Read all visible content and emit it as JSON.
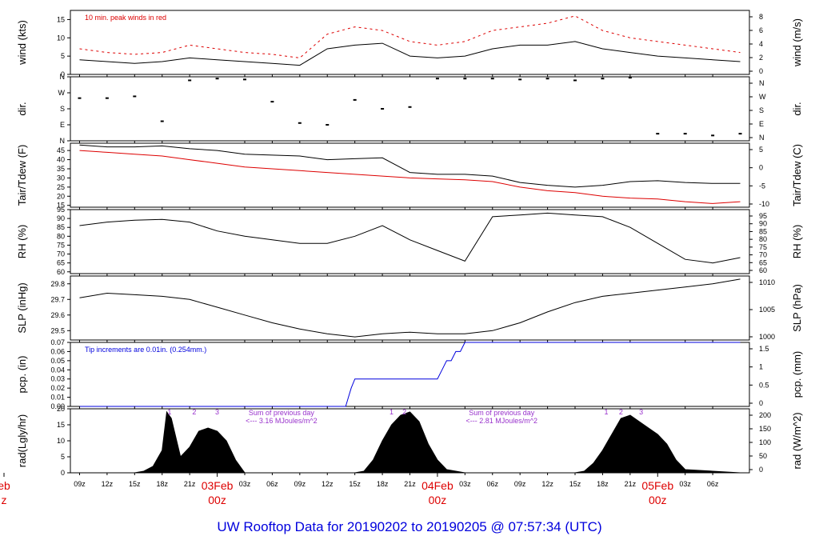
{
  "footer_title": "UW Rooftop Data for 20190202  to  20190205 @ 07:57:34  (UTC)",
  "colors": {
    "black": "#000000",
    "red": "#dd0000",
    "blue": "#0000dd",
    "purple": "#9933cc"
  },
  "chart_data": [
    {
      "type": "line",
      "panel": "wind",
      "ylabel_left": "wind (kts)",
      "ylabel_right": "wind (m/s)",
      "yticks_left": [
        "0",
        "5",
        "10",
        "15"
      ],
      "yticks_right": [
        "0",
        "2",
        "4",
        "6",
        "8"
      ],
      "ylim": [
        0,
        17.5
      ],
      "annotation": "10 min. peak winds in red",
      "series": [
        {
          "color": "#000000",
          "x": [
            9,
            12,
            15,
            18,
            21,
            24,
            27,
            30,
            33,
            36,
            39,
            42,
            45,
            48,
            51,
            54,
            57,
            60,
            63,
            66,
            69,
            72,
            75,
            78,
            81
          ],
          "y": [
            4,
            3.5,
            3,
            3.5,
            4.5,
            4,
            3.5,
            3,
            2.5,
            7,
            8,
            8.5,
            5,
            4.5,
            5,
            7,
            8,
            8,
            9,
            7,
            6,
            5,
            4.5,
            4,
            3.5
          ]
        },
        {
          "color": "#dd0000",
          "x": [
            9,
            12,
            15,
            18,
            21,
            24,
            27,
            30,
            33,
            36,
            39,
            42,
            45,
            48,
            51,
            54,
            57,
            60,
            63,
            66,
            69,
            72,
            75,
            78,
            81
          ],
          "y": [
            7,
            6,
            5.5,
            6,
            8,
            7,
            6,
            5.5,
            4.5,
            11,
            13,
            12,
            9,
            8,
            9,
            12,
            13,
            14,
            16,
            12,
            10,
            9,
            8,
            7,
            6
          ]
        }
      ]
    },
    {
      "type": "scatter",
      "panel": "dir",
      "ylabel_left": "dir.",
      "ylabel_right": "dir.",
      "yticks_left": [
        "N",
        "E",
        "S",
        "W",
        "N"
      ],
      "yticks_right": [
        "N",
        "E",
        "S",
        "W",
        "N"
      ],
      "ylim": [
        0,
        360
      ],
      "x": [
        9,
        12,
        15,
        18,
        21,
        24,
        27,
        30,
        33,
        36,
        39,
        42,
        45,
        48,
        51,
        54,
        57,
        60,
        63,
        66,
        69,
        72,
        75,
        78,
        81
      ],
      "y": [
        240,
        240,
        250,
        110,
        340,
        350,
        345,
        220,
        100,
        90,
        230,
        180,
        190,
        350,
        350,
        350,
        345,
        350,
        340,
        350,
        355,
        40,
        40,
        30,
        40
      ]
    },
    {
      "type": "line",
      "panel": "temp",
      "ylabel_left": "Tair/Tdew (F)",
      "ylabel_right": "Tair/Tdew (C)",
      "yticks_left": [
        "15",
        "20",
        "25",
        "30",
        "35",
        "40",
        "45"
      ],
      "yticks_right": [
        "-10",
        "-5",
        "0",
        "5"
      ],
      "ylim": [
        14,
        49
      ],
      "series": [
        {
          "color": "#000000",
          "x": [
            9,
            12,
            15,
            18,
            21,
            24,
            27,
            30,
            33,
            36,
            39,
            42,
            45,
            48,
            51,
            54,
            57,
            60,
            63,
            66,
            69,
            72,
            75,
            78,
            81
          ],
          "y": [
            48,
            47,
            47,
            47.5,
            46,
            45,
            43,
            42.5,
            42,
            40,
            40.5,
            41,
            33,
            32,
            32,
            31,
            27.5,
            26,
            25,
            26,
            28,
            28.5,
            27.5,
            27,
            27
          ]
        },
        {
          "color": "#dd0000",
          "x": [
            9,
            12,
            15,
            18,
            21,
            24,
            27,
            30,
            33,
            36,
            39,
            42,
            45,
            48,
            51,
            54,
            57,
            60,
            63,
            66,
            69,
            72,
            75,
            78,
            81
          ],
          "y": [
            45,
            44,
            43,
            42,
            40,
            38,
            36,
            35,
            34,
            33,
            32,
            31,
            30,
            29.5,
            29,
            28,
            25,
            23,
            22,
            20,
            19,
            18.5,
            17,
            16,
            17
          ]
        }
      ]
    },
    {
      "type": "line",
      "panel": "rh",
      "ylabel_left": "RH (%)",
      "ylabel_right": "RH (%)",
      "yticks_left": [
        "60",
        "65",
        "70",
        "75",
        "80",
        "85",
        "90",
        "95"
      ],
      "yticks_right": [
        "60",
        "65",
        "70",
        "75",
        "80",
        "85",
        "90",
        "95"
      ],
      "ylim": [
        59,
        95
      ],
      "series": [
        {
          "color": "#000000",
          "x": [
            9,
            12,
            15,
            18,
            21,
            24,
            27,
            30,
            33,
            36,
            39,
            42,
            45,
            48,
            51,
            54,
            57,
            60,
            63,
            66,
            69,
            72,
            75,
            78,
            81
          ],
          "y": [
            86,
            88,
            89,
            89.5,
            88,
            83,
            80,
            78,
            76,
            76,
            80,
            86,
            78,
            72,
            66,
            91,
            92,
            93,
            92,
            91,
            85,
            76,
            67,
            65,
            68
          ]
        }
      ]
    },
    {
      "type": "line",
      "panel": "slp",
      "ylabel_left": "SLP (inHg)",
      "ylabel_right": "SLP (hPa)",
      "yticks_left": [
        "29.5",
        "29.6",
        "29.7",
        "29.8"
      ],
      "yticks_right": [
        "1000",
        "1005",
        "1010"
      ],
      "ylim": [
        29.44,
        29.85
      ],
      "series": [
        {
          "color": "#000000",
          "x": [
            9,
            12,
            15,
            18,
            21,
            24,
            27,
            30,
            33,
            36,
            39,
            42,
            45,
            48,
            51,
            54,
            57,
            60,
            63,
            66,
            69,
            72,
            75,
            78,
            81
          ],
          "y": [
            29.71,
            29.74,
            29.73,
            29.72,
            29.7,
            29.65,
            29.6,
            29.55,
            29.51,
            29.48,
            29.46,
            29.48,
            29.49,
            29.48,
            29.48,
            29.5,
            29.55,
            29.62,
            29.68,
            29.72,
            29.74,
            29.76,
            29.78,
            29.8,
            29.83
          ]
        }
      ]
    },
    {
      "type": "line",
      "panel": "pcp",
      "ylabel_left": "pcp. (in)",
      "ylabel_right": "pcp. (mm)",
      "yticks_left": [
        "0.00",
        "0.01",
        "0.02",
        "0.03",
        "0.04",
        "0.05",
        "0.06",
        "0.07"
      ],
      "yticks_right": [
        "0",
        "0.5",
        "1",
        "1.5"
      ],
      "ylim": [
        0,
        0.07
      ],
      "annotation": "Tip increments are 0.01in. (0.254mm.)",
      "series": [
        {
          "color": "#0000dd",
          "x": [
            9,
            38,
            38.3,
            38.6,
            39,
            48,
            48.5,
            49,
            49.5,
            50,
            50.5,
            51,
            51.5,
            81
          ],
          "y": [
            0,
            0,
            0.01,
            0.02,
            0.03,
            0.03,
            0.04,
            0.05,
            0.05,
            0.06,
            0.06,
            0.07,
            0.07,
            0.07
          ]
        }
      ]
    },
    {
      "type": "area",
      "panel": "rad",
      "ylabel_left": "rad(Lgly/hr)",
      "ylabel_right": "rad (W/m^2)",
      "yticks_left": [
        "0",
        "5",
        "10",
        "15",
        "20"
      ],
      "yticks_right": [
        "0",
        "50",
        "100",
        "150",
        "200"
      ],
      "ylim": [
        0,
        20
      ],
      "top_marks": [
        {
          "text": "1",
          "x": 18.8
        },
        {
          "text": "2",
          "x": 21.5
        },
        {
          "text": "3",
          "x": 24.0
        },
        {
          "text": "1",
          "x": 43.0
        },
        {
          "text": "2",
          "x": 44.4
        },
        {
          "text": "1",
          "x": 66.4
        },
        {
          "text": "2",
          "x": 68.0
        },
        {
          "text": "3",
          "x": 70.2
        }
      ],
      "notes": [
        {
          "line1": "Sum of previous day",
          "line2": "<--- 3.16 MJoules/m^2",
          "x": 31
        },
        {
          "line1": "Sum of previous day",
          "line2": "<--- 2.81 MJoules/m^2",
          "x": 55
        }
      ],
      "series": [
        {
          "color": "#000000",
          "x": [
            9,
            15,
            16,
            17,
            18,
            18.5,
            19,
            20,
            21,
            22,
            23,
            24,
            25,
            26,
            27,
            39,
            40,
            41,
            42,
            43,
            44,
            45,
            46,
            47,
            48,
            49,
            50,
            51,
            63,
            64,
            65,
            66,
            67,
            68,
            69,
            70,
            71,
            72,
            73,
            74,
            75,
            81
          ],
          "y": [
            0,
            0,
            0.5,
            2,
            7,
            19,
            17,
            5,
            8,
            13,
            14,
            13,
            10,
            4,
            0,
            0,
            0.5,
            4,
            10,
            15,
            18,
            19,
            16,
            9,
            4,
            1,
            0.5,
            0,
            0,
            0.5,
            3,
            7,
            12,
            17,
            18,
            16,
            14,
            12,
            9,
            4,
            1,
            0
          ]
        }
      ]
    }
  ],
  "x_axis": {
    "xlim": [
      8,
      82
    ],
    "ticks": [
      {
        "label": "09z",
        "x": 9
      },
      {
        "label": "12z",
        "x": 12
      },
      {
        "label": "15z",
        "x": 15
      },
      {
        "label": "18z",
        "x": 18
      },
      {
        "label": "21z",
        "x": 21
      },
      {
        "label": "03z",
        "x": 27
      },
      {
        "label": "06z",
        "x": 30
      },
      {
        "label": "09z",
        "x": 33
      },
      {
        "label": "12z",
        "x": 36
      },
      {
        "label": "15z",
        "x": 39
      },
      {
        "label": "18z",
        "x": 42
      },
      {
        "label": "21z",
        "x": 45
      },
      {
        "label": "03z",
        "x": 51
      },
      {
        "label": "06z",
        "x": 54
      },
      {
        "label": "09z",
        "x": 57
      },
      {
        "label": "12z",
        "x": 60
      },
      {
        "label": "15z",
        "x": 63
      },
      {
        "label": "18z",
        "x": 66
      },
      {
        "label": "21z",
        "x": 69
      },
      {
        "label": "03z",
        "x": 75
      },
      {
        "label": "06z",
        "x": 78
      }
    ],
    "day_labels": [
      {
        "date": "eb",
        "time": "z",
        "x": 0
      },
      {
        "date": "03Feb",
        "time": "00z",
        "x": 24
      },
      {
        "date": "04Feb",
        "time": "00z",
        "x": 48
      },
      {
        "date": "05Feb",
        "time": "00z",
        "x": 72
      }
    ]
  }
}
